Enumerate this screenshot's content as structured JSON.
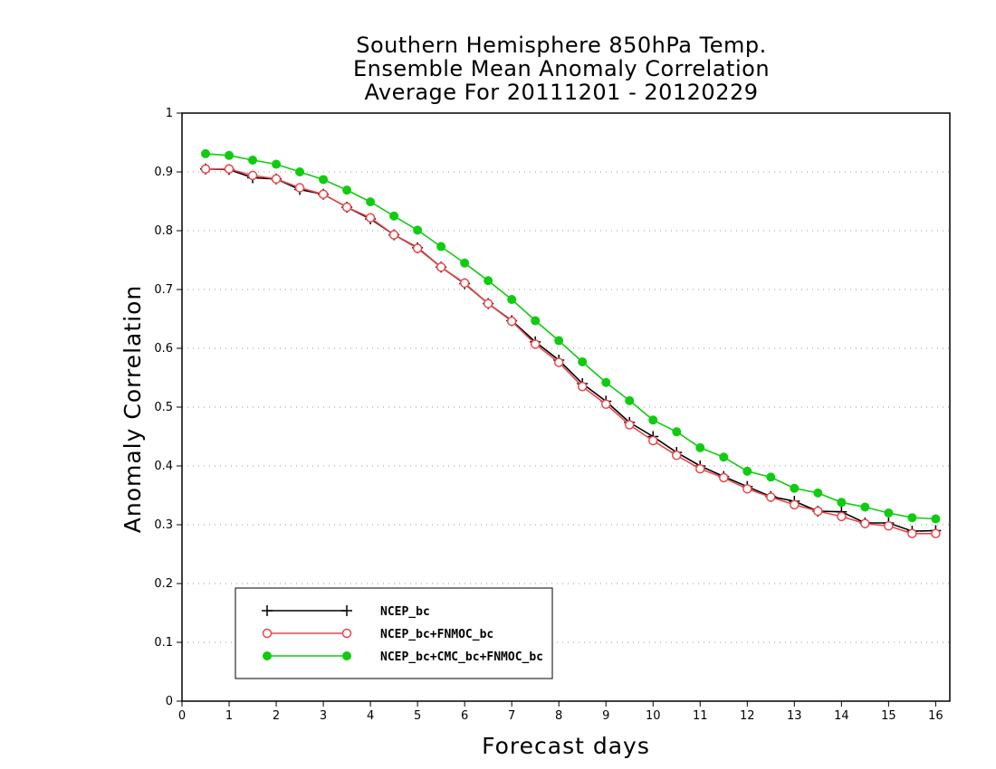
{
  "chart_data": {
    "type": "line",
    "title": [
      "Southern Hemisphere 850hPa Temp.",
      "Ensemble Mean Anomaly Correlation",
      "Average For 20111201 - 20120229"
    ],
    "xlabel": "Forecast days",
    "ylabel": "Anomaly Correlation",
    "xlim": [
      0,
      16.3
    ],
    "ylim": [
      0,
      1
    ],
    "xticks": [
      "0",
      "1",
      "2",
      "3",
      "4",
      "5",
      "6",
      "7",
      "8",
      "9",
      "10",
      "11",
      "12",
      "13",
      "14",
      "15",
      "16"
    ],
    "yticks": [
      "0",
      "0.1",
      "0.2",
      "0.3",
      "0.4",
      "0.5",
      "0.6",
      "0.7",
      "0.8",
      "0.9",
      "1"
    ],
    "grid": "horizontal dotted",
    "legend_position": "bottom-left",
    "x": [
      0.5,
      1,
      1.5,
      2,
      2.5,
      3,
      3.5,
      4,
      4.5,
      5,
      5.5,
      6,
      6.5,
      7,
      7.5,
      8,
      8.5,
      9,
      9.5,
      10,
      10.5,
      11,
      11.5,
      12,
      12.5,
      13,
      13.5,
      14,
      14.5,
      15,
      15.5,
      16
    ],
    "series": [
      {
        "name": "NCEP_bc",
        "color": "#000000",
        "marker": "plus",
        "values": [
          0.905,
          0.904,
          0.89,
          0.888,
          0.87,
          0.862,
          0.84,
          0.82,
          0.793,
          0.771,
          0.738,
          0.71,
          0.676,
          0.647,
          0.611,
          0.58,
          0.54,
          0.51,
          0.474,
          0.45,
          0.423,
          0.4,
          0.382,
          0.365,
          0.348,
          0.34,
          0.323,
          0.322,
          0.303,
          0.303,
          0.289,
          0.29
        ]
      },
      {
        "name": "NCEP_bc+FNMOC_bc",
        "color": "#e8474b",
        "marker": "open-circle",
        "values": [
          0.905,
          0.905,
          0.894,
          0.888,
          0.873,
          0.862,
          0.84,
          0.822,
          0.793,
          0.77,
          0.738,
          0.711,
          0.676,
          0.646,
          0.607,
          0.576,
          0.535,
          0.505,
          0.47,
          0.443,
          0.418,
          0.395,
          0.38,
          0.361,
          0.347,
          0.334,
          0.323,
          0.314,
          0.302,
          0.298,
          0.285,
          0.285
        ]
      },
      {
        "name": "NCEP_bc+CMC_bc+FNMOC_bc",
        "color": "#10cc10",
        "marker": "filled-circle",
        "values": [
          0.931,
          0.928,
          0.92,
          0.913,
          0.9,
          0.887,
          0.869,
          0.849,
          0.825,
          0.801,
          0.773,
          0.745,
          0.715,
          0.683,
          0.647,
          0.613,
          0.577,
          0.542,
          0.511,
          0.478,
          0.458,
          0.431,
          0.415,
          0.391,
          0.381,
          0.362,
          0.354,
          0.338,
          0.33,
          0.32,
          0.312,
          0.31
        ]
      }
    ]
  }
}
